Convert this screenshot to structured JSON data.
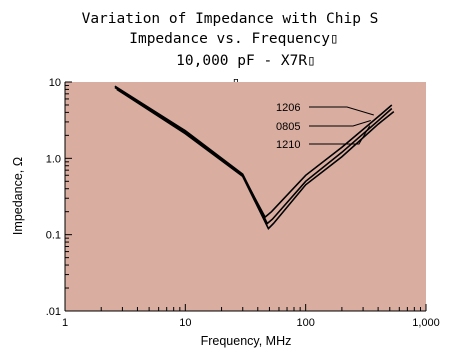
{
  "chart_data": {
    "type": "line",
    "title_lines": [
      "Variation of Impedance with Chip S",
      "Impedance vs. Frequency▯",
      "10,000 pF - X7R▯"
    ],
    "title_artifacts": [
      "▯",
      "▯"
    ],
    "xlabel": "Frequency, MHz",
    "ylabel": "Impedance, Ω",
    "x_scale": "log",
    "y_scale": "log",
    "xlim": [
      1,
      1000
    ],
    "ylim": [
      0.01,
      10
    ],
    "x_ticks": [
      {
        "value": 1,
        "label": "1"
      },
      {
        "value": 10,
        "label": "10"
      },
      {
        "value": 100,
        "label": "100"
      },
      {
        "value": 1000,
        "label": "1,000"
      }
    ],
    "y_ticks": [
      {
        "value": 0.01,
        "label": ".01"
      },
      {
        "value": 0.1,
        "label": "0.1"
      },
      {
        "value": 1,
        "label": "1.0"
      },
      {
        "value": 10,
        "label": "10"
      }
    ],
    "grid": false,
    "plot_background": "#d9ad9f",
    "series": [
      {
        "name": "1206",
        "x": [
          2.6,
          10,
          30,
          46,
          52,
          100,
          200,
          400,
          520
        ],
        "y": [
          8.5,
          2.2,
          0.6,
          0.17,
          0.2,
          0.6,
          1.4,
          3.5,
          5.0
        ]
      },
      {
        "name": "0805",
        "x": [
          2.6,
          10,
          30,
          48,
          53,
          100,
          200,
          400,
          520
        ],
        "y": [
          8.8,
          2.3,
          0.62,
          0.14,
          0.16,
          0.5,
          1.2,
          3.1,
          4.5
        ]
      },
      {
        "name": "1210",
        "x": [
          2.7,
          10,
          30,
          49,
          54,
          100,
          200,
          400,
          540
        ],
        "y": [
          8.0,
          2.1,
          0.58,
          0.12,
          0.14,
          0.45,
          1.05,
          2.8,
          4.1
        ]
      }
    ]
  }
}
